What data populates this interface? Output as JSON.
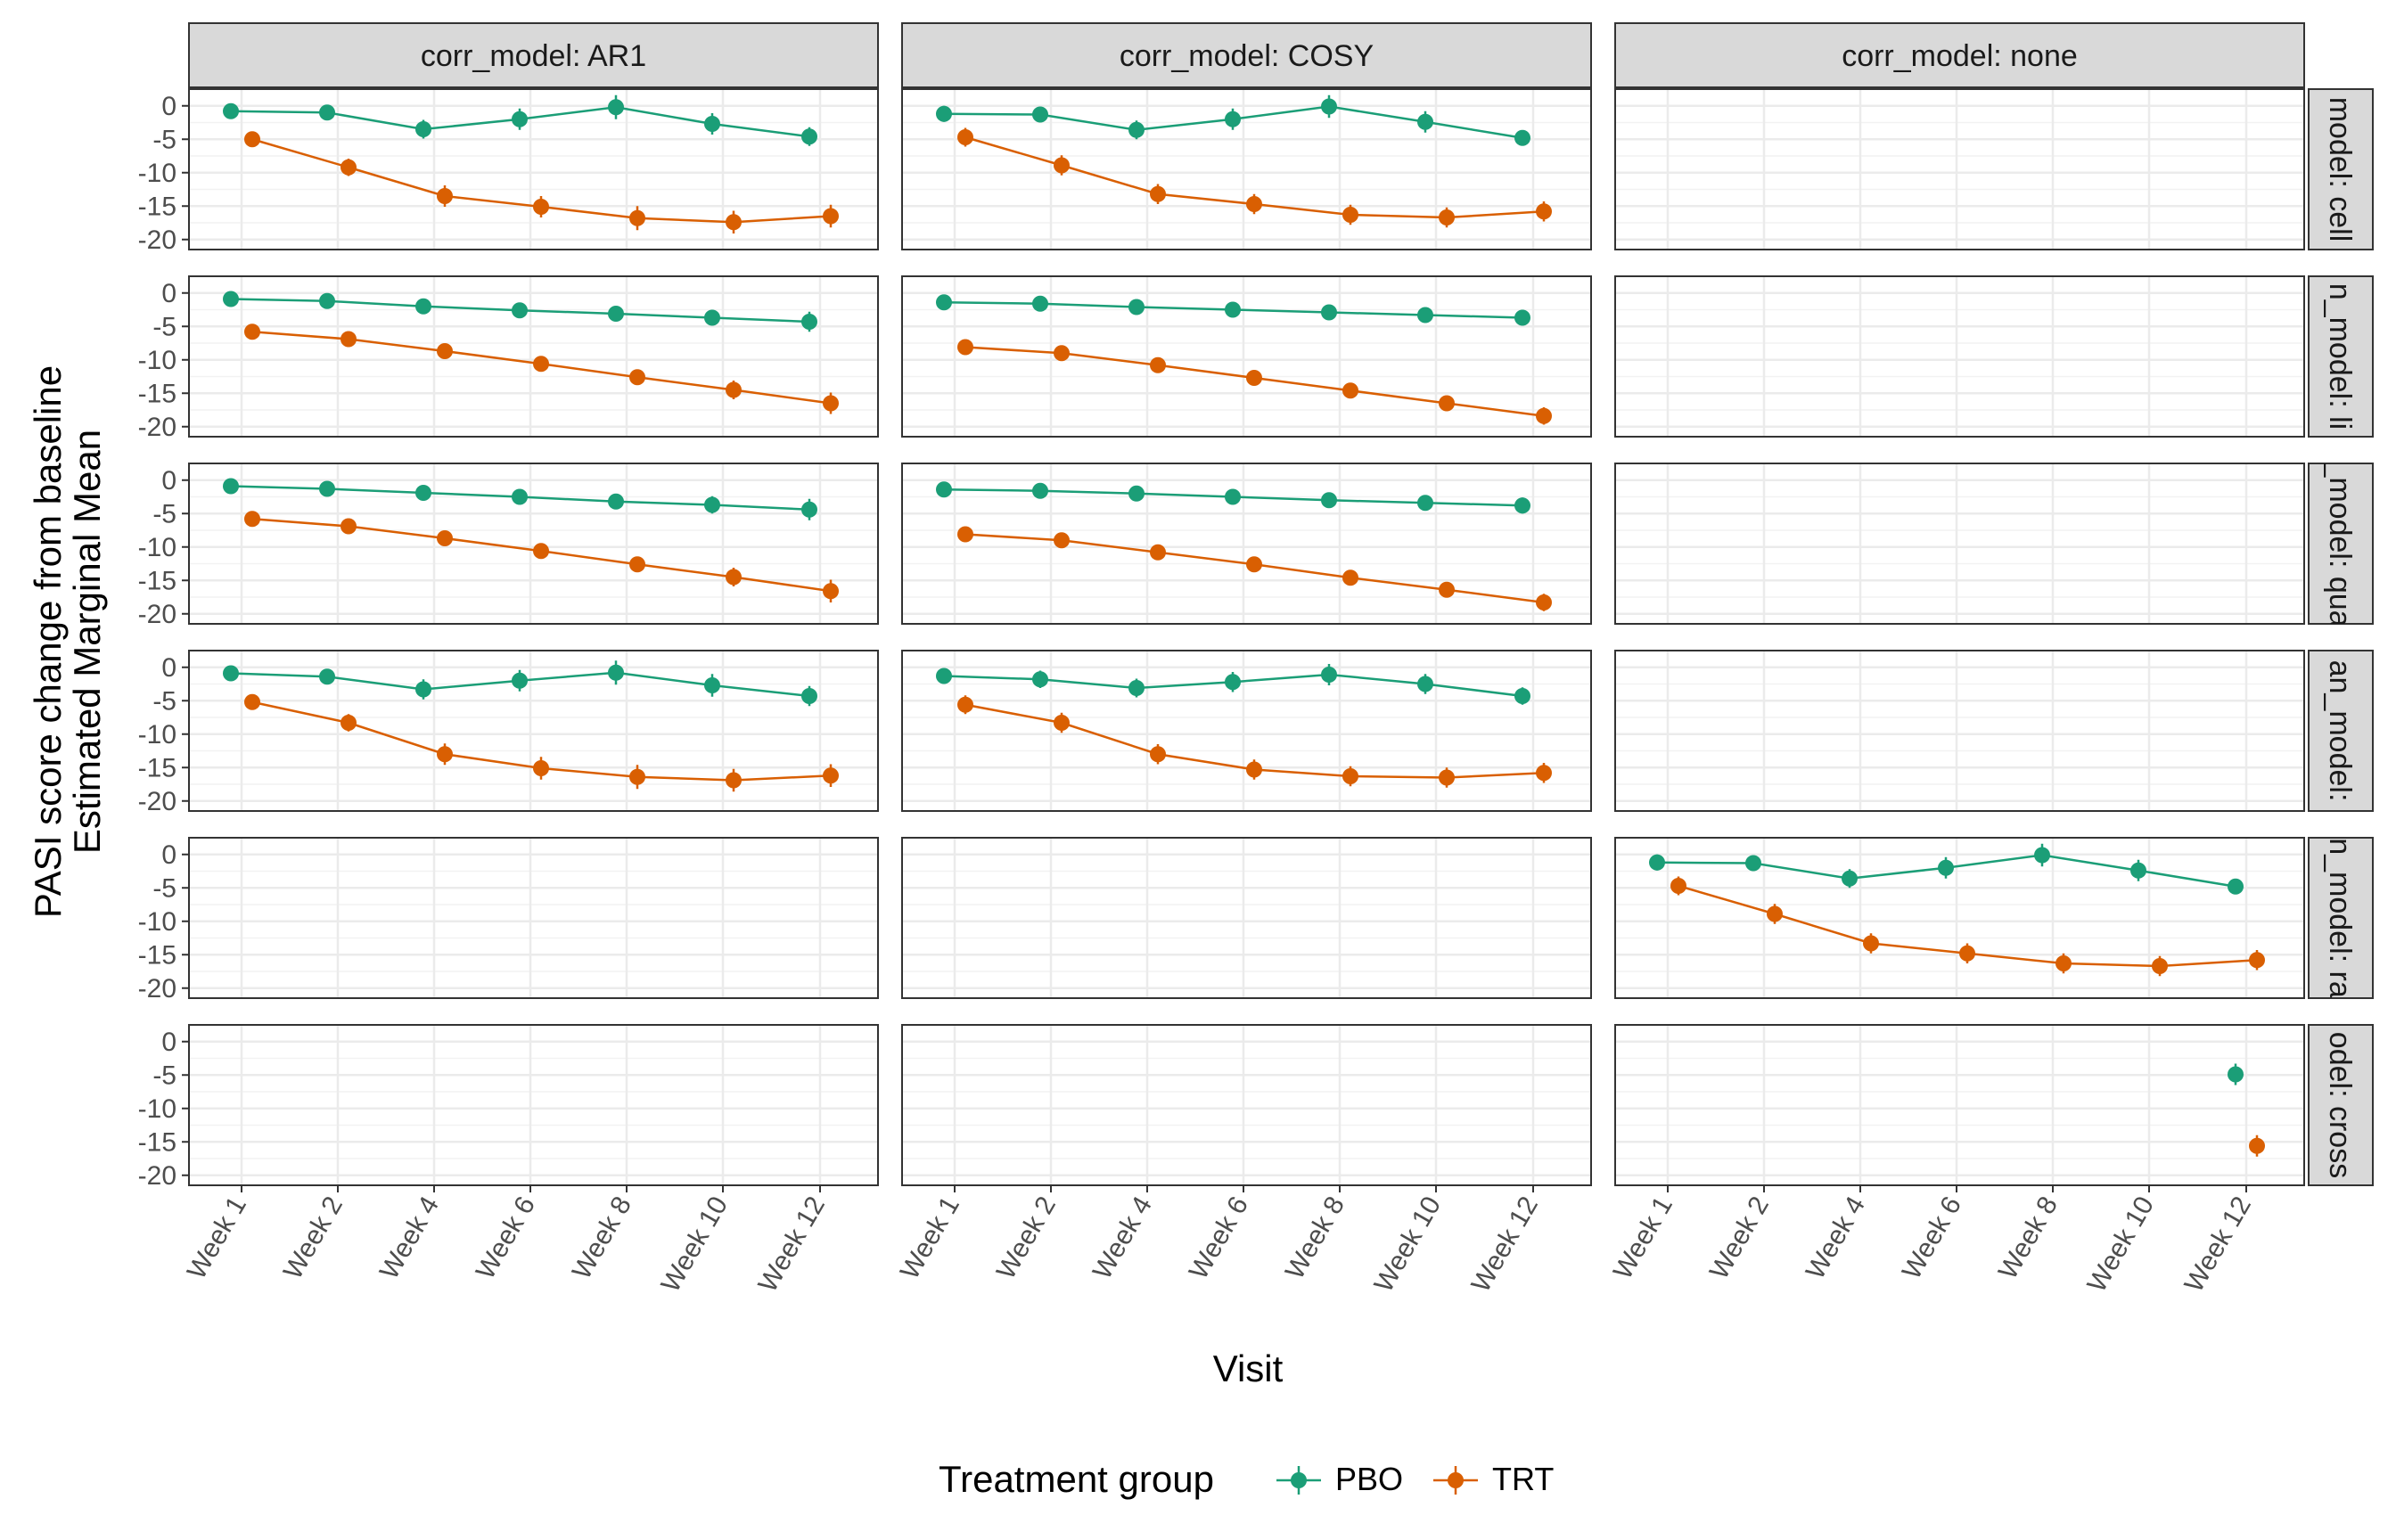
{
  "chart_data": {
    "type": "line",
    "xlabel": "Visit",
    "ylabel_lines": [
      "PASI score change from baseline",
      "Estimated Marginal Mean"
    ],
    "categories": [
      "Week 1",
      "Week 2",
      "Week 4",
      "Week 6",
      "Week 8",
      "Week 10",
      "Week 12"
    ],
    "yticks": [
      0,
      -5,
      -10,
      -15,
      -20
    ],
    "ylim": [
      -21.5,
      2.5
    ],
    "grid": true,
    "legend": {
      "title": "Treatment group",
      "position": "bottom",
      "entries": [
        {
          "name": "PBO",
          "color": "#1b9e77"
        },
        {
          "name": "TRT",
          "color": "#d95f02"
        }
      ]
    },
    "column_strips": [
      "corr_model: AR1",
      "corr_model: COSY",
      "corr_model: none"
    ],
    "row_strips": [
      "model: cell",
      "n_model: li",
      "_model: qua",
      "an_model:",
      "n_model: ra",
      "odel: cross"
    ],
    "panels": [
      {
        "row": 0,
        "col": 0,
        "series": [
          {
            "name": "PBO",
            "values": [
              -0.8,
              -1.0,
              -3.5,
              -2.0,
              -0.2,
              -2.7,
              -4.6
            ],
            "err": [
              0.9,
              1.0,
              1.4,
              1.6,
              1.8,
              1.6,
              1.4
            ]
          },
          {
            "name": "TRT",
            "values": [
              -5.0,
              -9.2,
              -13.5,
              -15.1,
              -16.8,
              -17.4,
              -16.5
            ],
            "err": [
              0.9,
              1.3,
              1.6,
              1.6,
              1.8,
              1.7,
              1.7
            ]
          }
        ]
      },
      {
        "row": 0,
        "col": 1,
        "series": [
          {
            "name": "PBO",
            "values": [
              -1.2,
              -1.3,
              -3.6,
              -2.0,
              -0.1,
              -2.4,
              -4.8
            ],
            "err": [
              1.2,
              1.2,
              1.4,
              1.6,
              1.7,
              1.6,
              1.1
            ]
          },
          {
            "name": "TRT",
            "values": [
              -4.7,
              -8.9,
              -13.2,
              -14.7,
              -16.3,
              -16.7,
              -15.8
            ],
            "err": [
              1.4,
              1.5,
              1.5,
              1.5,
              1.5,
              1.5,
              1.5
            ]
          }
        ]
      },
      {
        "row": 0,
        "col": 2,
        "series": []
      },
      {
        "row": 1,
        "col": 0,
        "series": [
          {
            "name": "PBO",
            "values": [
              -0.9,
              -1.2,
              -2.0,
              -2.6,
              -3.1,
              -3.7,
              -4.3
            ],
            "err": [
              0.8,
              0.6,
              0.6,
              0.8,
              1.0,
              1.2,
              1.5
            ]
          },
          {
            "name": "TRT",
            "values": [
              -5.8,
              -6.9,
              -8.7,
              -10.6,
              -12.6,
              -14.5,
              -16.5
            ],
            "err": [
              0.8,
              0.7,
              0.7,
              0.8,
              1.1,
              1.4,
              1.6
            ]
          }
        ]
      },
      {
        "row": 1,
        "col": 1,
        "series": [
          {
            "name": "PBO",
            "values": [
              -1.4,
              -1.6,
              -2.1,
              -2.5,
              -2.9,
              -3.3,
              -3.7
            ],
            "err": [
              0.8,
              0.6,
              0.5,
              0.6,
              0.7,
              0.9,
              1.2
            ]
          },
          {
            "name": "TRT",
            "values": [
              -8.1,
              -9.0,
              -10.8,
              -12.7,
              -14.6,
              -16.5,
              -18.4
            ],
            "err": [
              0.9,
              0.7,
              0.7,
              0.7,
              0.8,
              1.0,
              1.3
            ]
          }
        ]
      },
      {
        "row": 1,
        "col": 2,
        "series": []
      },
      {
        "row": 2,
        "col": 0,
        "series": [
          {
            "name": "PBO",
            "values": [
              -0.9,
              -1.3,
              -1.9,
              -2.5,
              -3.2,
              -3.7,
              -4.4
            ],
            "err": [
              0.8,
              0.6,
              0.6,
              0.7,
              1.0,
              1.3,
              1.6
            ]
          },
          {
            "name": "TRT",
            "values": [
              -5.8,
              -6.9,
              -8.7,
              -10.6,
              -12.6,
              -14.5,
              -16.6
            ],
            "err": [
              0.8,
              0.7,
              0.7,
              0.8,
              1.1,
              1.4,
              1.7
            ]
          }
        ]
      },
      {
        "row": 2,
        "col": 1,
        "series": [
          {
            "name": "PBO",
            "values": [
              -1.4,
              -1.6,
              -2.0,
              -2.5,
              -3.0,
              -3.4,
              -3.8
            ],
            "err": [
              0.8,
              0.6,
              0.5,
              0.5,
              0.6,
              0.9,
              1.2
            ]
          },
          {
            "name": "TRT",
            "values": [
              -8.1,
              -9.0,
              -10.8,
              -12.6,
              -14.6,
              -16.4,
              -18.3
            ],
            "err": [
              0.9,
              0.7,
              0.6,
              0.7,
              0.8,
              1.0,
              1.3
            ]
          }
        ]
      },
      {
        "row": 2,
        "col": 2,
        "series": []
      },
      {
        "row": 3,
        "col": 0,
        "series": [
          {
            "name": "PBO",
            "values": [
              -0.9,
              -1.4,
              -3.3,
              -2.0,
              -0.8,
              -2.7,
              -4.3
            ],
            "err": [
              0.9,
              1.1,
              1.5,
              1.6,
              1.8,
              1.7,
              1.5
            ]
          },
          {
            "name": "TRT",
            "values": [
              -5.2,
              -8.3,
              -13.0,
              -15.1,
              -16.4,
              -16.9,
              -16.2
            ],
            "err": [
              0.9,
              1.3,
              1.6,
              1.7,
              1.8,
              1.7,
              1.7
            ]
          }
        ]
      },
      {
        "row": 3,
        "col": 1,
        "series": [
          {
            "name": "PBO",
            "values": [
              -1.3,
              -1.8,
              -3.1,
              -2.2,
              -1.1,
              -2.5,
              -4.3
            ],
            "err": [
              1.2,
              1.3,
              1.4,
              1.5,
              1.6,
              1.5,
              1.3
            ]
          },
          {
            "name": "TRT",
            "values": [
              -5.6,
              -8.3,
              -13.0,
              -15.3,
              -16.3,
              -16.5,
              -15.8
            ],
            "err": [
              1.4,
              1.5,
              1.5,
              1.5,
              1.5,
              1.5,
              1.5
            ]
          }
        ]
      },
      {
        "row": 3,
        "col": 2,
        "series": []
      },
      {
        "row": 4,
        "col": 0,
        "series": []
      },
      {
        "row": 4,
        "col": 1,
        "series": []
      },
      {
        "row": 4,
        "col": 2,
        "series": [
          {
            "name": "PBO",
            "values": [
              -1.2,
              -1.3,
              -3.6,
              -2.0,
              -0.1,
              -2.4,
              -4.8
            ],
            "err": [
              1.2,
              1.2,
              1.4,
              1.6,
              1.7,
              1.6,
              1.1
            ]
          },
          {
            "name": "TRT",
            "values": [
              -4.7,
              -8.9,
              -13.3,
              -14.8,
              -16.3,
              -16.7,
              -15.8
            ],
            "err": [
              1.4,
              1.5,
              1.5,
              1.5,
              1.5,
              1.5,
              1.5
            ]
          }
        ]
      },
      {
        "row": 5,
        "col": 0,
        "series": []
      },
      {
        "row": 5,
        "col": 1,
        "series": []
      },
      {
        "row": 5,
        "col": 2,
        "series": [
          {
            "name": "PBO",
            "values": [
              null,
              null,
              null,
              null,
              null,
              null,
              -4.9
            ],
            "err": [
              0,
              0,
              0,
              0,
              0,
              0,
              1.6
            ]
          },
          {
            "name": "TRT",
            "values": [
              null,
              null,
              null,
              null,
              null,
              null,
              -15.6
            ],
            "err": [
              0,
              0,
              0,
              0,
              0,
              0,
              1.6
            ]
          }
        ]
      }
    ]
  }
}
